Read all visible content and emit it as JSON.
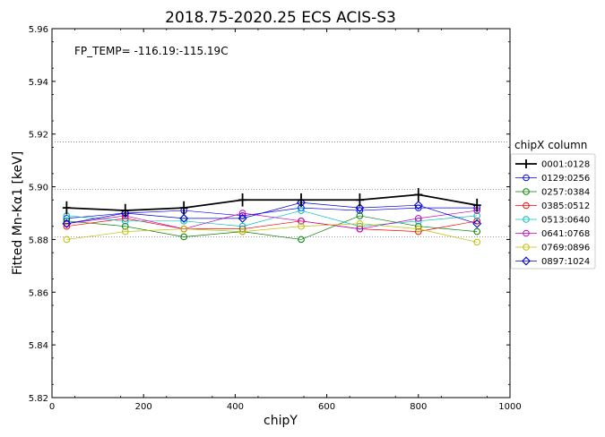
{
  "chart_data": {
    "type": "line",
    "title": "2018.75-2020.25   ECS   ACIS-S3",
    "xlabel": "chipY",
    "ylabel": "Fitted Mn-Kα1 [keV]",
    "annotation": "FP_TEMP= -116.19:-115.19C",
    "xlim": [
      0,
      1000
    ],
    "ylim": [
      5.82,
      5.96
    ],
    "xticks": [
      "0",
      "200",
      "400",
      "600",
      "800",
      "1000"
    ],
    "yticks": [
      "5.82",
      "5.84",
      "5.86",
      "5.88",
      "5.90",
      "5.92",
      "5.94",
      "5.96"
    ],
    "reference_lines": [
      5.917,
      5.899,
      5.881
    ],
    "legend": {
      "title": "chipX column",
      "position": "right-outside"
    },
    "x": [
      32,
      160,
      288,
      416,
      544,
      672,
      800,
      928
    ],
    "series": [
      {
        "name": "0001:0128",
        "color": "#000000",
        "marker": "errorbar",
        "values": [
          5.892,
          5.891,
          5.892,
          5.895,
          5.895,
          5.895,
          5.897,
          5.893
        ],
        "error": [
          0.0025,
          0.0025,
          0.0025,
          0.0025,
          0.0025,
          0.0025,
          0.0025,
          0.0025
        ]
      },
      {
        "name": "0129:0256",
        "color": "#0000ff",
        "marker": "circle",
        "values": [
          5.888,
          5.89,
          5.891,
          5.889,
          5.892,
          5.891,
          5.892,
          5.892
        ]
      },
      {
        "name": "0257:0384",
        "color": "#008000",
        "marker": "circle",
        "values": [
          5.887,
          5.885,
          5.881,
          5.883,
          5.88,
          5.889,
          5.885,
          5.883
        ]
      },
      {
        "name": "0385:0512",
        "color": "#ff0000",
        "marker": "circle",
        "values": [
          5.885,
          5.888,
          5.884,
          5.884,
          5.887,
          5.884,
          5.883,
          5.887
        ]
      },
      {
        "name": "0513:0640",
        "color": "#00bfbf",
        "marker": "circle",
        "values": [
          5.889,
          5.887,
          5.887,
          5.885,
          5.891,
          5.885,
          5.887,
          5.889
        ]
      },
      {
        "name": "0641:0768",
        "color": "#bf00bf",
        "marker": "circle",
        "values": [
          5.886,
          5.889,
          5.884,
          5.89,
          5.887,
          5.884,
          5.888,
          5.891
        ]
      },
      {
        "name": "0769:0896",
        "color": "#bfbf00",
        "marker": "circle",
        "values": [
          5.88,
          5.883,
          5.884,
          5.883,
          5.885,
          5.886,
          5.884,
          5.879
        ]
      },
      {
        "name": "0897:1024",
        "color": "#0000cc",
        "marker": "diamond",
        "values": [
          5.886,
          5.89,
          5.888,
          5.888,
          5.894,
          5.892,
          5.893,
          5.886
        ]
      }
    ]
  }
}
